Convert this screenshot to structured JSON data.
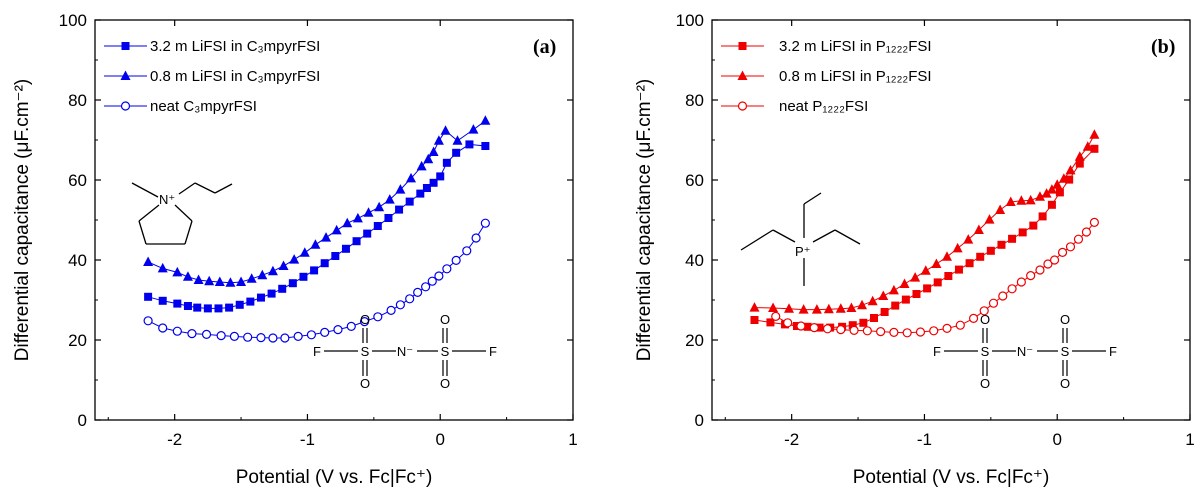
{
  "colors": {
    "a": "#0000ee",
    "b": "#ee0000",
    "axis": "#000000"
  },
  "chart_data": [
    {
      "type": "line",
      "panel_label": "(a)",
      "xlabel": "Potential (V vs. Fc|Fc⁺)",
      "ylabel": "Differential capacitance (μF.cm⁻²)",
      "xlim": [
        -2.6,
        1
      ],
      "ylim": [
        0,
        100
      ],
      "xticks": [
        "-2",
        "-1",
        "0",
        "1"
      ],
      "yticks": [
        "0",
        "20",
        "40",
        "60",
        "80",
        "100"
      ],
      "legend_position": "top-left",
      "series": [
        {
          "name": "3.2 m LiFSI in C₃mpyrFSI",
          "marker": "square",
          "x": [
            -2.2,
            -2.09,
            -1.98,
            -1.9,
            -1.83,
            -1.75,
            -1.67,
            -1.59,
            -1.51,
            -1.43,
            -1.35,
            -1.27,
            -1.19,
            -1.11,
            -1.03,
            -0.95,
            -0.87,
            -0.79,
            -0.71,
            -0.63,
            -0.55,
            -0.47,
            -0.39,
            -0.31,
            -0.23,
            -0.15,
            -0.1,
            -0.05,
            0.0,
            0.05,
            0.12,
            0.22,
            0.34
          ],
          "y": [
            30.8,
            29.8,
            29.1,
            28.5,
            28.1,
            27.9,
            27.9,
            28.1,
            28.8,
            29.6,
            30.6,
            31.6,
            32.8,
            34.2,
            35.8,
            37.4,
            39.2,
            41.0,
            42.8,
            44.7,
            46.6,
            48.5,
            50.5,
            52.6,
            54.6,
            56.6,
            58.0,
            59.3,
            60.9,
            64.3,
            66.8,
            68.9,
            68.5
          ]
        },
        {
          "name": "0.8 m LiFSI in C₃mpyrFSI",
          "marker": "triangle",
          "x": [
            -2.2,
            -2.09,
            -1.98,
            -1.9,
            -1.82,
            -1.74,
            -1.66,
            -1.58,
            -1.5,
            -1.42,
            -1.34,
            -1.26,
            -1.18,
            -1.1,
            -1.02,
            -0.94,
            -0.86,
            -0.78,
            -0.7,
            -0.62,
            -0.54,
            -0.46,
            -0.38,
            -0.3,
            -0.22,
            -0.14,
            -0.09,
            -0.05,
            -0.01,
            0.04,
            0.13,
            0.25,
            0.34
          ],
          "y": [
            39.5,
            37.9,
            36.9,
            35.8,
            35.0,
            34.7,
            34.5,
            34.3,
            34.5,
            35.3,
            36.2,
            37.2,
            38.5,
            40.1,
            41.8,
            43.8,
            45.6,
            47.4,
            49.2,
            50.4,
            51.8,
            53.2,
            55.1,
            57.6,
            60.4,
            63.4,
            65.2,
            67.0,
            69.8,
            72.3,
            69.8,
            72.6,
            74.8
          ]
        },
        {
          "name": "neat C₃mpyrFSI",
          "marker": "circle-open",
          "x": [
            -2.2,
            -2.09,
            -1.98,
            -1.87,
            -1.76,
            -1.65,
            -1.55,
            -1.45,
            -1.35,
            -1.26,
            -1.17,
            -1.07,
            -0.97,
            -0.87,
            -0.77,
            -0.67,
            -0.57,
            -0.47,
            -0.37,
            -0.3,
            -0.23,
            -0.17,
            -0.11,
            -0.06,
            -0.01,
            0.05,
            0.12,
            0.2,
            0.27,
            0.34
          ],
          "y": [
            24.8,
            23.0,
            22.2,
            21.6,
            21.4,
            21.1,
            20.9,
            20.7,
            20.6,
            20.5,
            20.5,
            20.9,
            21.3,
            21.9,
            22.6,
            23.4,
            24.6,
            25.8,
            27.4,
            28.8,
            30.3,
            31.9,
            33.3,
            34.7,
            36.0,
            37.8,
            39.9,
            42.3,
            45.5,
            49.2
          ]
        }
      ]
    },
    {
      "type": "line",
      "panel_label": "(b)",
      "xlabel": "Potential (V vs. Fc|Fc⁺)",
      "ylabel": "Differential capacitance (μF.cm⁻²)",
      "xlim": [
        -2.6,
        1
      ],
      "ylim": [
        0,
        100
      ],
      "xticks": [
        "-2",
        "-1",
        "0",
        "1"
      ],
      "yticks": [
        "0",
        "20",
        "40",
        "60",
        "80",
        "100"
      ],
      "legend_position": "top-left",
      "series": [
        {
          "name": "3.2 m LiFSI in P₁₂₂₂FSI",
          "marker": "square",
          "x": [
            -2.28,
            -2.16,
            -2.05,
            -1.96,
            -1.88,
            -1.79,
            -1.71,
            -1.62,
            -1.54,
            -1.46,
            -1.38,
            -1.3,
            -1.22,
            -1.14,
            -1.06,
            -0.98,
            -0.9,
            -0.82,
            -0.74,
            -0.66,
            -0.58,
            -0.5,
            -0.42,
            -0.34,
            -0.26,
            -0.18,
            -0.11,
            -0.04,
            0.02,
            0.09,
            0.17,
            0.28
          ],
          "y": [
            25.0,
            24.4,
            23.9,
            23.5,
            23.3,
            23.1,
            23.1,
            23.3,
            23.7,
            24.3,
            25.5,
            27.0,
            28.6,
            30.1,
            31.5,
            32.9,
            34.4,
            36.0,
            37.6,
            39.2,
            40.8,
            42.3,
            43.8,
            45.3,
            46.9,
            48.6,
            50.9,
            53.8,
            56.9,
            60.1,
            64.1,
            67.8
          ]
        },
        {
          "name": "0.8 m LiFSI in P₁₂₂₂FSI",
          "marker": "triangle",
          "x": [
            -2.28,
            -2.14,
            -2.02,
            -1.91,
            -1.81,
            -1.72,
            -1.63,
            -1.55,
            -1.47,
            -1.39,
            -1.31,
            -1.23,
            -1.15,
            -1.07,
            -0.99,
            -0.91,
            -0.83,
            -0.75,
            -0.67,
            -0.59,
            -0.51,
            -0.43,
            -0.35,
            -0.27,
            -0.2,
            -0.13,
            -0.08,
            -0.04,
            0.0,
            0.05,
            0.1,
            0.17,
            0.23,
            0.28
          ],
          "y": [
            28.1,
            28.0,
            27.8,
            27.6,
            27.6,
            27.7,
            27.8,
            28.0,
            28.7,
            29.7,
            31.0,
            32.4,
            34.0,
            35.6,
            37.3,
            39.0,
            40.8,
            42.9,
            45.1,
            47.5,
            50.1,
            52.5,
            54.5,
            54.8,
            54.9,
            55.8,
            56.6,
            57.6,
            58.8,
            60.3,
            62.4,
            65.8,
            68.3,
            71.3
          ]
        },
        {
          "name": "neat P₁₂₂₂FSI",
          "marker": "circle-open",
          "x": [
            -2.12,
            -2.03,
            -1.93,
            -1.83,
            -1.73,
            -1.63,
            -1.53,
            -1.43,
            -1.33,
            -1.23,
            -1.13,
            -1.03,
            -0.93,
            -0.83,
            -0.73,
            -0.63,
            -0.55,
            -0.48,
            -0.41,
            -0.34,
            -0.27,
            -0.2,
            -0.13,
            -0.07,
            -0.02,
            0.04,
            0.1,
            0.16,
            0.22,
            0.28
          ],
          "y": [
            25.9,
            24.3,
            23.5,
            23.1,
            22.8,
            22.6,
            22.4,
            22.3,
            22.1,
            21.9,
            21.8,
            22.0,
            22.3,
            22.9,
            23.7,
            25.4,
            27.3,
            29.2,
            31.0,
            32.8,
            34.5,
            36.1,
            37.5,
            39.0,
            40.0,
            41.9,
            43.3,
            45.2,
            47.0,
            49.4
          ]
        }
      ]
    }
  ],
  "structures": {
    "cation_a_charge": "N⁺",
    "cation_b_charge": "P⁺",
    "anion": {
      "f_left": "F",
      "s_left": "S",
      "n_minus": "N⁻",
      "s_right": "S",
      "f_right": "F",
      "oxygen": "O"
    }
  }
}
